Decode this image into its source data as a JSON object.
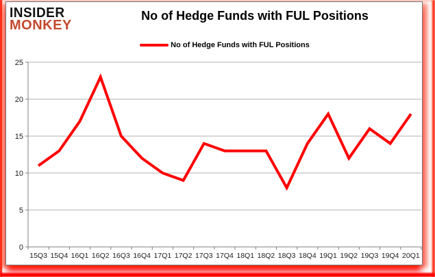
{
  "logo": {
    "line1": "INSIDER",
    "line2": "MONKEY",
    "line1_color": "#111111",
    "line2_color": "#c3492e"
  },
  "header": {
    "title": "No of Hedge Funds with FUL Positions"
  },
  "legend": {
    "label": "No of Hedge Funds with FUL Positions",
    "swatch_color": "#ff0000"
  },
  "chart_data": {
    "type": "line",
    "title": "No of Hedge Funds with FUL Positions",
    "series_name": "No of Hedge Funds with FUL Positions",
    "categories": [
      "15Q3",
      "15Q4",
      "16Q1",
      "16Q2",
      "16Q3",
      "16Q4",
      "17Q1",
      "17Q2",
      "17Q3",
      "17Q4",
      "18Q1",
      "18Q2",
      "18Q3",
      "18Q4",
      "19Q1",
      "19Q2",
      "19Q3",
      "19Q4",
      "20Q1"
    ],
    "values": [
      11,
      13,
      17,
      23,
      15,
      12,
      10,
      9,
      14,
      13,
      13,
      13,
      8,
      14,
      18,
      12,
      16,
      14,
      18
    ],
    "xlabel": "",
    "ylabel": "",
    "ylim": [
      0,
      25
    ],
    "yticks": [
      0,
      5,
      10,
      15,
      20,
      25
    ],
    "grid": true,
    "legend_position": "top",
    "line_color": "#ff0000",
    "line_width": 4,
    "gridline_color": "#b2b2b2",
    "axis_color": "#7f7f7f",
    "tick_label_color": "#1a1a1a"
  }
}
